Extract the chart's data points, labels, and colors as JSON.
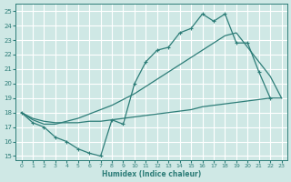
{
  "xlabel": "Humidex (Indice chaleur)",
  "bg_color": "#cfe8e5",
  "grid_color": "#ffffff",
  "line_color": "#2d7d78",
  "xlim": [
    -0.5,
    23.5
  ],
  "ylim": [
    14.7,
    25.5
  ],
  "xticks": [
    0,
    1,
    2,
    3,
    4,
    5,
    6,
    7,
    8,
    9,
    10,
    11,
    12,
    13,
    14,
    15,
    16,
    17,
    18,
    19,
    20,
    21,
    22,
    23
  ],
  "yticks": [
    15,
    16,
    17,
    18,
    19,
    20,
    21,
    22,
    23,
    24,
    25
  ],
  "line1_x": [
    0,
    1,
    2,
    3,
    4,
    5,
    6,
    7,
    8,
    9,
    10,
    11,
    12,
    13,
    14,
    15,
    16,
    17,
    18,
    19,
    20,
    21,
    22
  ],
  "line1_y": [
    18.0,
    17.3,
    17.0,
    16.3,
    16.0,
    15.5,
    15.2,
    15.0,
    17.5,
    17.2,
    20.0,
    21.5,
    22.3,
    22.5,
    23.5,
    23.8,
    24.8,
    24.3,
    24.8,
    22.8,
    22.8,
    20.8,
    19.0
  ],
  "line2_x": [
    0,
    1,
    2,
    3,
    4,
    5,
    6,
    7,
    8,
    9,
    10,
    11,
    12,
    13,
    14,
    15,
    16,
    17,
    18,
    19,
    20,
    21,
    22,
    23
  ],
  "line2_y": [
    18.0,
    17.6,
    17.4,
    17.3,
    17.3,
    17.3,
    17.4,
    17.4,
    17.5,
    17.6,
    17.7,
    17.8,
    17.9,
    18.0,
    18.1,
    18.2,
    18.4,
    18.5,
    18.6,
    18.7,
    18.8,
    18.9,
    19.0,
    19.0
  ],
  "line3_x": [
    0,
    1,
    2,
    3,
    4,
    5,
    6,
    7,
    8,
    9,
    10,
    11,
    12,
    13,
    14,
    15,
    16,
    17,
    18,
    19,
    20,
    21,
    22,
    23
  ],
  "line3_y": [
    18.0,
    17.5,
    17.2,
    17.2,
    17.4,
    17.6,
    17.9,
    18.2,
    18.5,
    18.9,
    19.3,
    19.8,
    20.3,
    20.8,
    21.3,
    21.8,
    22.3,
    22.8,
    23.3,
    23.5,
    22.5,
    21.5,
    20.5,
    19.0
  ]
}
